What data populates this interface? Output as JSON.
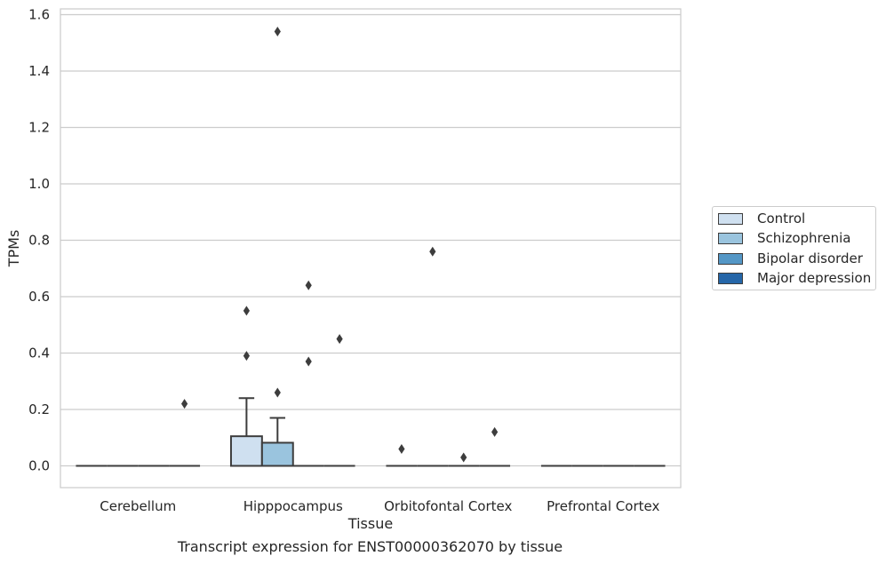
{
  "chart_data": {
    "type": "box",
    "xlabel": "Tissue",
    "ylabel": "TPMs",
    "categories": [
      "Cerebellum",
      "Hipppocampus",
      "Orbitofontal Cortex",
      "Prefrontal Cortex"
    ],
    "ylim": [
      -0.075,
      1.62
    ],
    "yticks": [
      0.0,
      0.2,
      0.4,
      0.6,
      0.8,
      1.0,
      1.2,
      1.4,
      1.6
    ],
    "ytick_labels": [
      "0.0",
      "0.2",
      "0.4",
      "0.6",
      "0.8",
      "1.0",
      "1.2",
      "1.4",
      "1.6"
    ],
    "grid": true,
    "legend_position": "right",
    "series": [
      {
        "name": "Control",
        "color": "#cfe0f0",
        "boxes": [
          {
            "q1": 0,
            "median": 0,
            "q3": 0,
            "whislo": 0,
            "whishi": 0,
            "outliers": []
          },
          {
            "q1": 0,
            "median": 0,
            "q3": 0.105,
            "whislo": 0,
            "whishi": 0.24,
            "outliers": [
              0.39,
              0.55
            ]
          },
          {
            "q1": 0,
            "median": 0,
            "q3": 0,
            "whislo": 0,
            "whishi": 0,
            "outliers": [
              0.06
            ]
          },
          {
            "q1": 0,
            "median": 0,
            "q3": 0,
            "whislo": 0,
            "whishi": 0,
            "outliers": []
          }
        ]
      },
      {
        "name": "Schizophrenia",
        "color": "#9ac4de",
        "boxes": [
          {
            "q1": 0,
            "median": 0,
            "q3": 0,
            "whislo": 0,
            "whishi": 0,
            "outliers": []
          },
          {
            "q1": 0,
            "median": 0,
            "q3": 0.082,
            "whislo": 0,
            "whishi": 0.17,
            "outliers": [
              0.26,
              1.54
            ]
          },
          {
            "q1": 0,
            "median": 0,
            "q3": 0,
            "whislo": 0,
            "whishi": 0,
            "outliers": [
              0.76
            ]
          },
          {
            "q1": 0,
            "median": 0,
            "q3": 0,
            "whislo": 0,
            "whishi": 0,
            "outliers": []
          }
        ]
      },
      {
        "name": "Bipolar disorder",
        "color": "#5497c6",
        "boxes": [
          {
            "q1": 0,
            "median": 0,
            "q3": 0,
            "whislo": 0,
            "whishi": 0,
            "outliers": []
          },
          {
            "q1": 0,
            "median": 0,
            "q3": 0,
            "whislo": 0,
            "whishi": 0,
            "outliers": [
              0.37,
              0.64
            ]
          },
          {
            "q1": 0,
            "median": 0,
            "q3": 0,
            "whislo": 0,
            "whishi": 0,
            "outliers": [
              0.03
            ]
          },
          {
            "q1": 0,
            "median": 0,
            "q3": 0,
            "whislo": 0,
            "whishi": 0,
            "outliers": []
          }
        ]
      },
      {
        "name": "Major depression",
        "color": "#2566a8",
        "boxes": [
          {
            "q1": 0,
            "median": 0,
            "q3": 0,
            "whislo": 0,
            "whishi": 0,
            "outliers": [
              0.22
            ]
          },
          {
            "q1": 0,
            "median": 0,
            "q3": 0,
            "whislo": 0,
            "whishi": 0,
            "outliers": [
              0.45
            ]
          },
          {
            "q1": 0,
            "median": 0,
            "q3": 0,
            "whislo": 0,
            "whishi": 0,
            "outliers": [
              0.12
            ]
          },
          {
            "q1": 0,
            "median": 0,
            "q3": 0,
            "whislo": 0,
            "whishi": 0,
            "outliers": []
          }
        ]
      }
    ]
  },
  "caption": "Transcript expression for ENST00000362070 by tissue",
  "colors": {
    "grid": "#cccccc",
    "spine": "#cccccc",
    "box_edge": "#3d3d3d",
    "flier": "#3d3d3d"
  }
}
